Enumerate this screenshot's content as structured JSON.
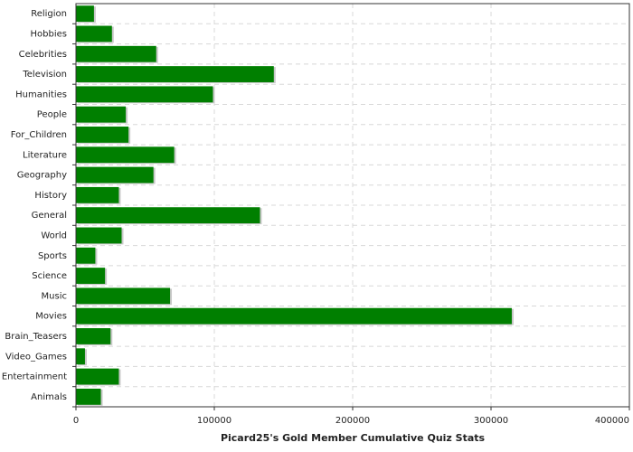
{
  "chart_data": {
    "type": "hbar",
    "xlabel": "Picard25's Gold Member Cumulative Quiz Stats",
    "categories": [
      "Religion",
      "Hobbies",
      "Celebrities",
      "Television",
      "Humanities",
      "People",
      "For_Children",
      "Literature",
      "Geography",
      "History",
      "General",
      "World",
      "Sports",
      "Science",
      "Music",
      "Movies",
      "Brain_Teasers",
      "Video_Games",
      "Entertainment",
      "Animals"
    ],
    "values": [
      13000,
      26000,
      58000,
      143000,
      99000,
      36000,
      38000,
      71000,
      56000,
      31000,
      133000,
      33000,
      14000,
      21000,
      68000,
      315000,
      25000,
      6500,
      31000,
      18000
    ],
    "color": "#007f00",
    "xlim": [
      0,
      400000
    ],
    "xticks": [
      0,
      100000,
      200000,
      300000,
      400000
    ],
    "grid": true
  }
}
